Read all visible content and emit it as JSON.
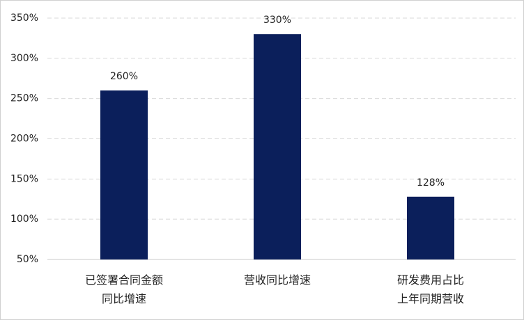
{
  "chart_data": {
    "type": "bar",
    "categories": [
      "已签署合同金额\n同比增速",
      "营收同比增速",
      "研发费用占比\n上年同期营收"
    ],
    "values": [
      260,
      330,
      128
    ],
    "value_labels": [
      "260%",
      "330%",
      "128%"
    ],
    "color": "#0b1f5b",
    "ylim": [
      50,
      350
    ],
    "yticks": [
      {
        "value": 50,
        "label": "50%"
      },
      {
        "value": 100,
        "label": "100%"
      },
      {
        "value": 150,
        "label": "150%"
      },
      {
        "value": 200,
        "label": "200%"
      },
      {
        "value": 250,
        "label": "250%"
      },
      {
        "value": 300,
        "label": "300%"
      },
      {
        "value": 350,
        "label": "350%"
      }
    ],
    "grid": true
  }
}
